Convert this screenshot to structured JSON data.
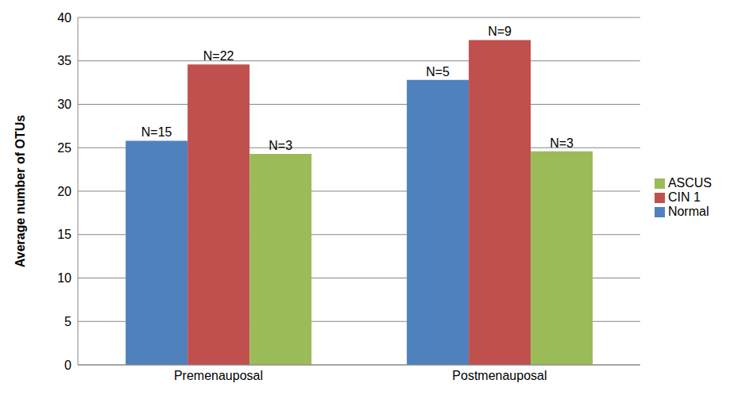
{
  "chart_data": {
    "type": "bar",
    "y_label": "Average number of OTUs",
    "categories": [
      "Premenauposal",
      "Postmenauposal"
    ],
    "series": [
      {
        "name": "Normal",
        "color": "#4f81bd",
        "values": [
          25.8,
          32.8
        ],
        "sample_sizes": [
          "N=15",
          "N=5"
        ]
      },
      {
        "name": "CIN 1",
        "color": "#c0504d",
        "values": [
          34.6,
          37.4
        ],
        "sample_sizes": [
          "N=22",
          "N=9"
        ]
      },
      {
        "name": "ASCUS",
        "color": "#9bbb59",
        "values": [
          24.3,
          24.6
        ],
        "sample_sizes": [
          "N=3",
          "N=3"
        ]
      }
    ],
    "ylim": [
      0,
      40
    ],
    "yticks": [
      0,
      5,
      10,
      15,
      20,
      25,
      30,
      35,
      40
    ],
    "grid": true,
    "legend": "right"
  }
}
